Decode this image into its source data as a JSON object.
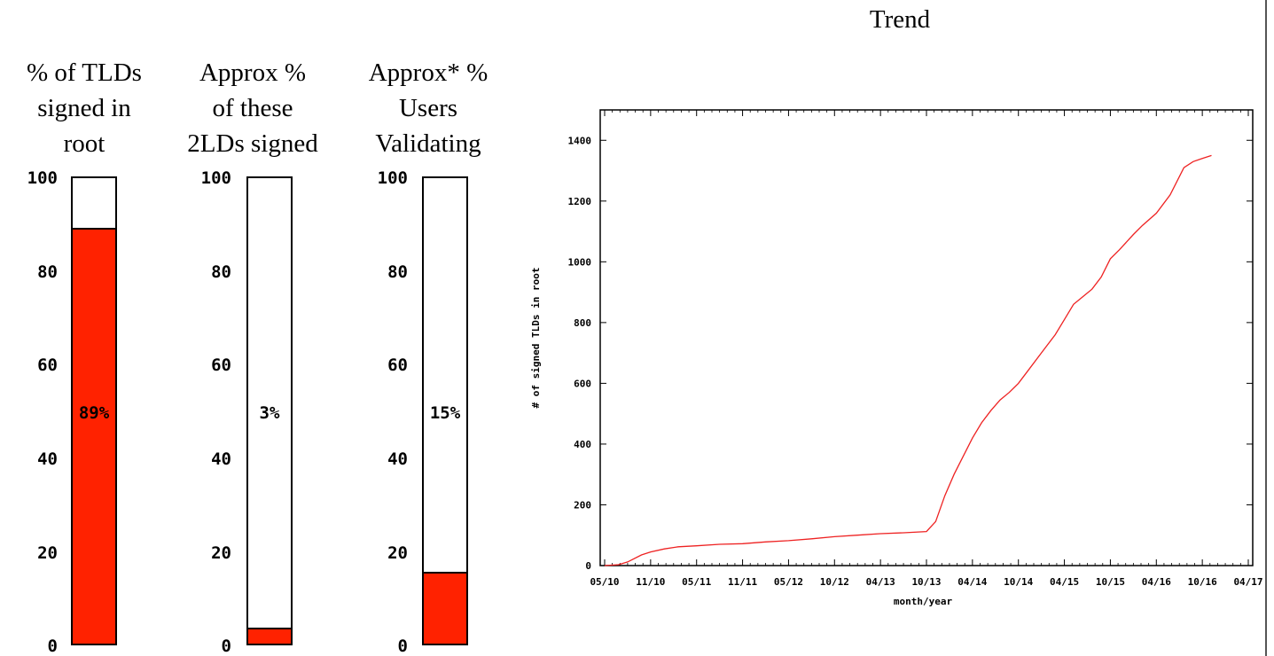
{
  "chart_data": [
    {
      "type": "bar",
      "title": "% of TLDs\nsigned in\nroot",
      "yticks": [
        "100",
        "80",
        "60",
        "40",
        "20",
        "0"
      ],
      "ylim": [
        0,
        100
      ],
      "value": 89,
      "value_label": "89%",
      "fill_color": "#ff2200"
    },
    {
      "type": "bar",
      "title": "Approx %\nof these\n2LDs signed",
      "yticks": [
        "100",
        "80",
        "60",
        "40",
        "20",
        "0"
      ],
      "ylim": [
        0,
        100
      ],
      "value": 3,
      "value_label": "3%",
      "fill_color": "#ff2200"
    },
    {
      "type": "bar",
      "title": "Approx* %\nUsers\nValidating",
      "yticks": [
        "100",
        "80",
        "60",
        "40",
        "20",
        "0"
      ],
      "ylim": [
        0,
        100
      ],
      "value": 15,
      "value_label": "15%",
      "fill_color": "#ff2200"
    },
    {
      "type": "line",
      "title": "Trend",
      "xlabel": "month/year",
      "ylabel": "# of signed TLDs in root",
      "ylim": [
        0,
        1500
      ],
      "yticks": [
        0,
        200,
        400,
        600,
        800,
        1000,
        1200,
        1400
      ],
      "xticks": [
        "05/10",
        "11/10",
        "05/11",
        "11/11",
        "05/12",
        "10/12",
        "04/13",
        "10/13",
        "04/14",
        "10/14",
        "04/15",
        "10/15",
        "04/16",
        "10/16",
        "04/17"
      ],
      "line_color": "#ee2222",
      "series": [
        {
          "x": [
            0,
            0.3,
            0.5,
            0.8,
            1.0,
            1.3,
            1.6,
            2.0,
            2.5,
            3.0,
            3.5,
            4.0,
            4.5,
            5.0,
            5.5,
            6.0,
            6.5,
            7.0,
            7.2,
            7.4,
            7.6,
            7.8,
            8.0,
            8.2,
            8.4,
            8.6,
            8.8,
            9.0,
            9.2,
            9.5,
            9.8,
            10.0,
            10.2,
            10.4,
            10.6,
            10.8,
            11.0,
            11.2,
            11.5,
            11.7,
            12.0,
            12.3,
            12.6,
            12.8,
            13.0,
            13.2
          ],
          "y": [
            0,
            3,
            12,
            35,
            45,
            55,
            62,
            65,
            70,
            72,
            78,
            82,
            88,
            95,
            100,
            105,
            108,
            112,
            145,
            230,
            300,
            360,
            420,
            470,
            510,
            545,
            570,
            600,
            640,
            700,
            760,
            810,
            860,
            885,
            910,
            950,
            1010,
            1040,
            1090,
            1120,
            1160,
            1220,
            1310,
            1330,
            1340,
            1350
          ]
        }
      ]
    }
  ]
}
